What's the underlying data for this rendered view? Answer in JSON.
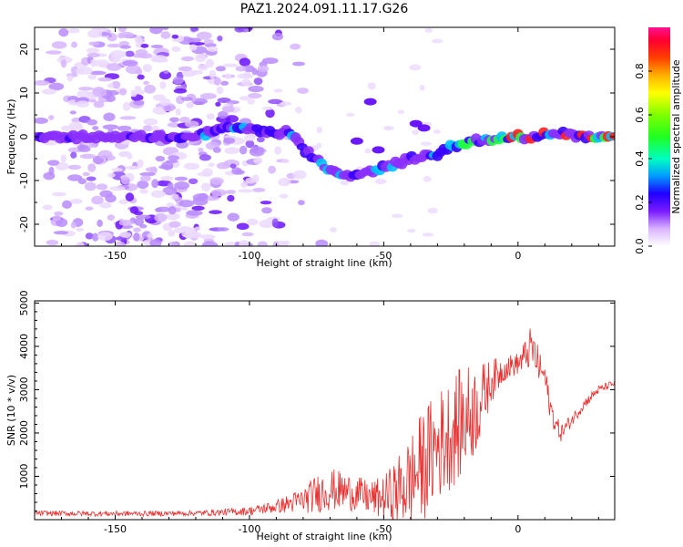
{
  "figure": {
    "title": "PAZ1.2024.091.11.17.G26"
  },
  "chart_data": [
    {
      "type": "heatmap",
      "name": "spectrogram",
      "xlabel": "Height of straight line (km)",
      "ylabel": "Frequency (Hz)",
      "xlim": [
        -180,
        36
      ],
      "ylim": [
        -25,
        25
      ],
      "xticks": [
        -150,
        -100,
        -50,
        0
      ],
      "yticks": [
        -20,
        -10,
        0,
        10,
        20
      ],
      "colorbar": {
        "label": "Normalized spectral amplitude",
        "range": [
          0,
          1
        ],
        "ticks": [
          0.0,
          0.2,
          0.4,
          0.6,
          0.8
        ],
        "colormap": "gist_ncar_r"
      },
      "ridge": [
        {
          "x": -180,
          "y": 0
        },
        {
          "x": -150,
          "y": 0
        },
        {
          "x": -120,
          "y": 0
        },
        {
          "x": -110,
          "y": 2
        },
        {
          "x": -100,
          "y": 2
        },
        {
          "x": -95,
          "y": 1
        },
        {
          "x": -85,
          "y": 1
        },
        {
          "x": -80,
          "y": -3
        },
        {
          "x": -75,
          "y": -5
        },
        {
          "x": -70,
          "y": -8
        },
        {
          "x": -65,
          "y": -9
        },
        {
          "x": -60,
          "y": -9
        },
        {
          "x": -50,
          "y": -7
        },
        {
          "x": -40,
          "y": -5
        },
        {
          "x": -30,
          "y": -4
        },
        {
          "x": -25,
          "y": -2
        },
        {
          "x": -15,
          "y": -1
        },
        {
          "x": -5,
          "y": 0
        },
        {
          "x": 5,
          "y": 0
        },
        {
          "x": 15,
          "y": 1
        },
        {
          "x": 25,
          "y": 0
        },
        {
          "x": 36,
          "y": 0
        }
      ]
    },
    {
      "type": "line",
      "name": "snr",
      "xlabel": "Height of straight line (km)",
      "ylabel": "SNR (10 * v/v)",
      "xlim": [
        -180,
        36
      ],
      "ylim": [
        0,
        5050
      ],
      "xticks": [
        -150,
        -100,
        -50,
        0
      ],
      "yticks": [
        1000,
        2000,
        3000,
        4000,
        5000
      ],
      "line_color": "#e83030",
      "envelope": {
        "x": [
          -180,
          -160,
          -140,
          -120,
          -110,
          -100,
          -90,
          -80,
          -75,
          -70,
          -65,
          -60,
          -55,
          -50,
          -45,
          -40,
          -35,
          -30,
          -25,
          -20,
          -15,
          -10,
          -5,
          0,
          3,
          5,
          8,
          10,
          12,
          14,
          16,
          20,
          25,
          30,
          36
        ],
        "mean": [
          150,
          140,
          140,
          150,
          170,
          200,
          300,
          450,
          600,
          700,
          650,
          600,
          500,
          500,
          650,
          900,
          1300,
          1700,
          2000,
          2300,
          2600,
          3200,
          3500,
          3600,
          3800,
          4000,
          3500,
          3300,
          2600,
          2200,
          2000,
          2300,
          2700,
          3000,
          3150
        ],
        "spread": [
          60,
          60,
          60,
          60,
          80,
          100,
          150,
          300,
          450,
          500,
          450,
          400,
          400,
          500,
          800,
          1100,
          1300,
          1300,
          1300,
          1300,
          1000,
          500,
          300,
          250,
          400,
          500,
          400,
          300,
          300,
          250,
          200,
          150,
          120,
          100,
          80
        ]
      }
    }
  ]
}
